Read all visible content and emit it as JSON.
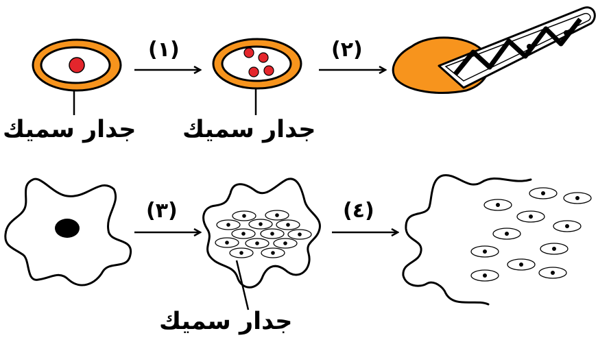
{
  "labels": {
    "wall_1": "جدار سميك",
    "wall_2": "جدار سميك",
    "wall_3": "جدار سميك"
  },
  "steps": {
    "s1": "(١)",
    "s2": "(٢)",
    "s3": "(٣)",
    "s4": "(٤)"
  },
  "colors": {
    "wall_orange": "#f7941d",
    "nucleus_red": "#e4262c",
    "outline": "#000000"
  }
}
